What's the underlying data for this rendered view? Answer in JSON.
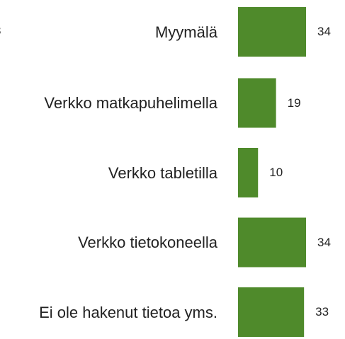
{
  "chart_data": {
    "type": "bar",
    "orientation": "horizontal",
    "annotation": "3",
    "categories": [
      "Myymälä",
      "Verkko matkapuhelimella",
      "Verkko tabletilla",
      "Verkko tietokoneella",
      "Ei ole hakenut tietoa yms."
    ],
    "values": [
      34,
      19,
      10,
      34,
      33
    ],
    "color": "#4f8a2b",
    "xlim": [
      0,
      34
    ]
  }
}
